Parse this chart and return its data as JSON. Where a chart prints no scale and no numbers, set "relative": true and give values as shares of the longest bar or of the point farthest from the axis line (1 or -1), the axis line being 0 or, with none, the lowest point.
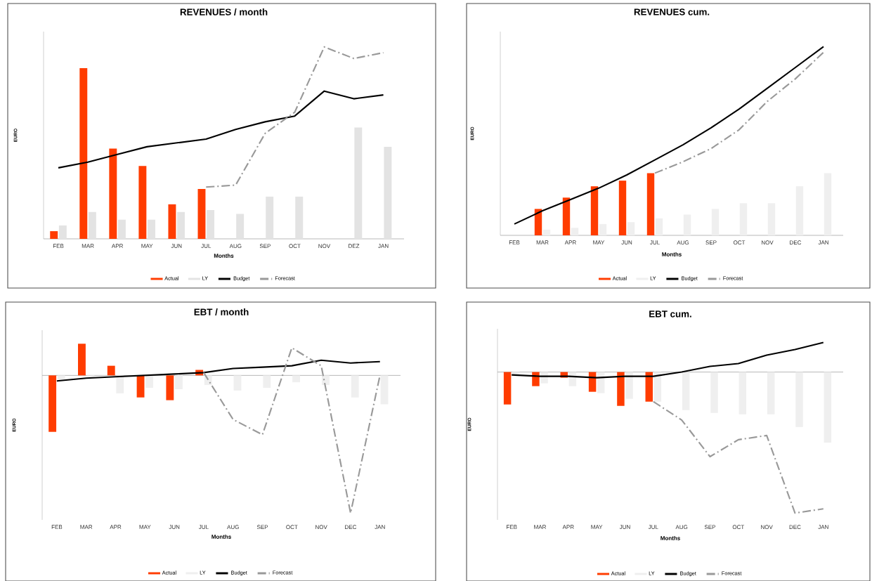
{
  "chart_data": [
    {
      "type": "bar",
      "title": "REVENUES / month",
      "xlabel": "Months",
      "ylabel": "EURO",
      "relative": true,
      "legend": "bottom",
      "categories": [
        "FEB",
        "MAR",
        "APR",
        "MAY",
        "JUN",
        "JUL",
        "AUG",
        "SEP",
        "OCT",
        "NOV",
        "DEZ",
        "JAN"
      ],
      "series": [
        {
          "name": "Actual",
          "color": "#ff3c00",
          "values": [
            0.04,
            0.89,
            0.47,
            0.38,
            0.18,
            0.26,
            null,
            null,
            null,
            null,
            null,
            null
          ]
        },
        {
          "name": "LY",
          "color": "#e3e3e3",
          "values": [
            0.07,
            0.14,
            0.1,
            0.1,
            0.14,
            0.15,
            0.13,
            0.22,
            0.22,
            null,
            0.58,
            0.48
          ]
        },
        {
          "name": "Budget",
          "type": "line",
          "color": "#000000",
          "line_style": "solid",
          "values": [
            0.37,
            0.4,
            0.44,
            0.48,
            0.5,
            0.52,
            0.57,
            0.61,
            0.64,
            0.77,
            0.73,
            0.75
          ]
        },
        {
          "name": "Forecast",
          "type": "line",
          "color": "#999999",
          "line_style": "dashed",
          "values": [
            null,
            null,
            null,
            null,
            null,
            0.27,
            0.28,
            0.55,
            0.66,
            1.0,
            0.94,
            0.97
          ]
        }
      ]
    },
    {
      "type": "bar",
      "title": "REVENUES cum.",
      "xlabel": "Months",
      "ylabel": "EURO",
      "relative": true,
      "legend": "bottom",
      "categories": [
        "FEB",
        "MAR",
        "APR",
        "MAY",
        "JUN",
        "JUL",
        "AUG",
        "SEP",
        "OCT",
        "NOV",
        "DEC",
        "JAN"
      ],
      "series": [
        {
          "name": "Actual",
          "color": "#ff3c00",
          "values": [
            null,
            0.14,
            0.2,
            0.26,
            0.29,
            0.33,
            null,
            null,
            null,
            null,
            null,
            null
          ]
        },
        {
          "name": "LY",
          "color": "#efefef",
          "values": [
            null,
            0.03,
            0.04,
            0.06,
            0.07,
            0.09,
            0.11,
            0.14,
            0.17,
            0.17,
            0.26,
            0.33
          ]
        },
        {
          "name": "Budget",
          "type": "line",
          "color": "#000000",
          "line_style": "solid",
          "values": [
            0.06,
            0.13,
            0.19,
            0.25,
            0.32,
            0.4,
            0.48,
            0.57,
            0.67,
            0.78,
            0.89,
            1.0
          ]
        },
        {
          "name": "Forecast",
          "type": "line",
          "color": "#999999",
          "line_style": "dashed",
          "values": [
            null,
            null,
            null,
            null,
            null,
            0.33,
            0.39,
            0.46,
            0.56,
            0.71,
            0.83,
            0.97
          ]
        }
      ]
    },
    {
      "type": "bar",
      "title": "EBT / month",
      "xlabel": "Months",
      "ylabel": "EURO",
      "relative": true,
      "legend": "bottom",
      "categories": [
        "FEB",
        "MAR",
        "APR",
        "MAY",
        "JUN",
        "JUL",
        "AUG",
        "SEP",
        "OCT",
        "NOV",
        "DEC",
        "JAN"
      ],
      "series": [
        {
          "name": "Actual",
          "color": "#ff3c00",
          "values": [
            -0.41,
            0.23,
            0.07,
            -0.16,
            -0.18,
            0.04,
            null,
            null,
            null,
            null,
            null,
            null
          ]
        },
        {
          "name": "LY",
          "color": "#efefef",
          "values": [
            -0.03,
            -0.01,
            -0.13,
            -0.09,
            -0.1,
            -0.07,
            -0.11,
            -0.09,
            -0.05,
            -0.07,
            -0.16,
            -0.21
          ]
        },
        {
          "name": "Budget",
          "type": "line",
          "color": "#000000",
          "line_style": "solid",
          "values": [
            -0.04,
            -0.02,
            -0.01,
            0.0,
            0.01,
            0.02,
            0.05,
            0.06,
            0.07,
            0.11,
            0.09,
            0.1
          ]
        },
        {
          "name": "Forecast",
          "type": "line",
          "color": "#999999",
          "line_style": "dashed",
          "values": [
            null,
            null,
            null,
            null,
            null,
            0.02,
            -0.32,
            -0.43,
            0.2,
            0.07,
            -1.0,
            0.0
          ]
        }
      ]
    },
    {
      "type": "bar",
      "title": "EBT cum.",
      "xlabel": "Months",
      "ylabel": "EURO",
      "relative": true,
      "legend": "bottom",
      "categories": [
        "FEB",
        "MAR",
        "APR",
        "MAY",
        "JUN",
        "JUL",
        "AUG",
        "SEP",
        "OCT",
        "NOV",
        "DEC",
        "JAN"
      ],
      "series": [
        {
          "name": "Actual",
          "color": "#ff3c00",
          "values": [
            -0.23,
            -0.1,
            -0.04,
            -0.14,
            -0.24,
            -0.21,
            null,
            null,
            null,
            null,
            null,
            null
          ]
        },
        {
          "name": "LY",
          "color": "#efefef",
          "values": [
            -0.03,
            -0.08,
            -0.1,
            -0.15,
            -0.19,
            -0.21,
            -0.27,
            -0.29,
            -0.3,
            -0.3,
            -0.39,
            -0.5
          ]
        },
        {
          "name": "Budget",
          "type": "line",
          "color": "#000000",
          "line_style": "solid",
          "values": [
            -0.02,
            -0.03,
            -0.03,
            -0.04,
            -0.03,
            -0.03,
            0.0,
            0.04,
            0.06,
            0.12,
            0.16,
            0.21
          ]
        },
        {
          "name": "Forecast",
          "type": "line",
          "color": "#999999",
          "line_style": "dashed",
          "values": [
            null,
            null,
            null,
            null,
            null,
            -0.21,
            -0.34,
            -0.6,
            -0.48,
            -0.45,
            -1.0,
            -0.97
          ]
        }
      ]
    }
  ]
}
